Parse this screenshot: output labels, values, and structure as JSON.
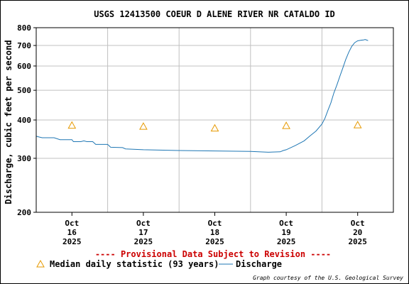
{
  "chart_data": {
    "type": "line",
    "title": "USGS 12413500 COEUR D ALENE RIVER NR CATALDO ID",
    "ylabel": "Discharge, cubic feet per second",
    "y_scale": "log",
    "ylim": [
      200,
      800
    ],
    "y_ticks": [
      {
        "value": 200,
        "label": "200"
      },
      {
        "value": 300,
        "label": "300"
      },
      {
        "value": 400,
        "label": "400"
      },
      {
        "value": 500,
        "label": "500"
      },
      {
        "value": 600,
        "label": "600"
      },
      {
        "value": 700,
        "label": "700"
      },
      {
        "value": 800,
        "label": "800"
      }
    ],
    "xlim": [
      "2025-10-15 12:00",
      "2025-10-20 12:00"
    ],
    "x_ticks": [
      {
        "date": "2025-10-16",
        "line1": "Oct",
        "line2": "16",
        "line3": "2025"
      },
      {
        "date": "2025-10-17",
        "line1": "Oct",
        "line2": "17",
        "line3": "2025"
      },
      {
        "date": "2025-10-18",
        "line1": "Oct",
        "line2": "18",
        "line3": "2025"
      },
      {
        "date": "2025-10-19",
        "line1": "Oct",
        "line2": "19",
        "line3": "2025"
      },
      {
        "date": "2025-10-20",
        "line1": "Oct",
        "line2": "20",
        "line3": "2025"
      }
    ],
    "grid": true,
    "series": [
      {
        "name": "Discharge",
        "color": "#1f77b4",
        "points": [
          [
            "2025-10-15 12:00",
            354
          ],
          [
            "2025-10-15 13:00",
            352
          ],
          [
            "2025-10-15 14:00",
            350
          ],
          [
            "2025-10-15 18:00",
            350
          ],
          [
            "2025-10-15 20:00",
            345
          ],
          [
            "2025-10-16 00:00",
            345
          ],
          [
            "2025-10-16 00:30",
            340
          ],
          [
            "2025-10-16 03:00",
            340
          ],
          [
            "2025-10-16 04:00",
            342
          ],
          [
            "2025-10-16 05:00",
            340
          ],
          [
            "2025-10-16 07:00",
            340
          ],
          [
            "2025-10-16 08:00",
            333
          ],
          [
            "2025-10-16 12:00",
            333
          ],
          [
            "2025-10-16 13:00",
            326
          ],
          [
            "2025-10-16 17:00",
            325
          ],
          [
            "2025-10-16 18:00",
            322
          ],
          [
            "2025-10-17 00:00",
            320
          ],
          [
            "2025-10-17 12:00",
            318
          ],
          [
            "2025-10-18 00:00",
            317
          ],
          [
            "2025-10-18 12:00",
            316
          ],
          [
            "2025-10-18 18:00",
            314
          ],
          [
            "2025-10-18 22:00",
            315
          ],
          [
            "2025-10-18 23:00",
            318
          ],
          [
            "2025-10-19 00:00",
            320
          ],
          [
            "2025-10-19 03:00",
            330
          ],
          [
            "2025-10-19 06:00",
            342
          ],
          [
            "2025-10-19 08:00",
            355
          ],
          [
            "2025-10-19 10:00",
            368
          ],
          [
            "2025-10-19 12:00",
            388
          ],
          [
            "2025-10-19 13:00",
            405
          ],
          [
            "2025-10-19 14:00",
            430
          ],
          [
            "2025-10-19 15:00",
            455
          ],
          [
            "2025-10-19 16:00",
            490
          ],
          [
            "2025-10-19 17:00",
            520
          ],
          [
            "2025-10-19 18:00",
            555
          ],
          [
            "2025-10-19 19:00",
            590
          ],
          [
            "2025-10-19 20:00",
            630
          ],
          [
            "2025-10-19 21:00",
            665
          ],
          [
            "2025-10-19 22:00",
            695
          ],
          [
            "2025-10-19 23:00",
            715
          ],
          [
            "2025-10-20 00:00",
            725
          ],
          [
            "2025-10-20 01:00",
            728
          ],
          [
            "2025-10-20 02:00",
            730
          ],
          [
            "2025-10-20 02:30",
            732
          ],
          [
            "2025-10-20 03:00",
            729
          ],
          [
            "2025-10-20 03:30",
            726
          ]
        ]
      },
      {
        "name": "Median daily statistic (93 years)",
        "marker": "triangle",
        "color": "#e69900",
        "points": [
          [
            "2025-10-16 00:00",
            384
          ],
          [
            "2025-10-17 00:00",
            381
          ],
          [
            "2025-10-18 00:00",
            376
          ],
          [
            "2025-10-19 00:00",
            383
          ],
          [
            "2025-10-20 00:00",
            385
          ]
        ]
      }
    ]
  },
  "notice": "---- Provisional Data Subject to Revision ----",
  "credit": "Graph courtesy of the U.S. Geological Survey",
  "colors": {
    "discharge": "#1f77b4",
    "median": "#e69900",
    "notice": "#cc0000",
    "grid": "#c0c0c0"
  }
}
